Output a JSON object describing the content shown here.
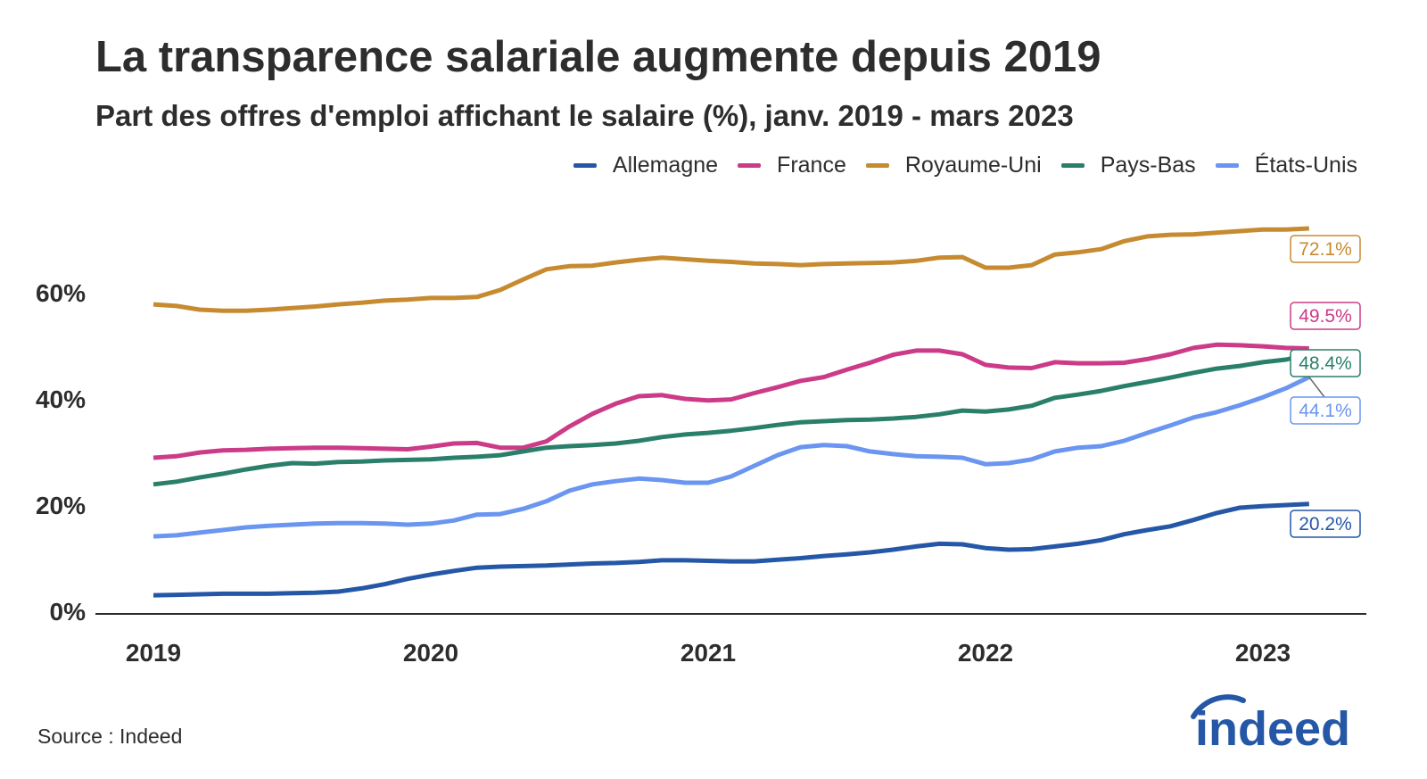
{
  "chart_data": {
    "type": "line",
    "title": "La transparence salariale augmente depuis 2019",
    "subtitle": "Part des offres d'emploi affichant le salaire (%), janv. 2019 - mars 2023",
    "xlabel": "",
    "ylabel": "",
    "x_start": "2019-01",
    "x_end": "2023-03",
    "x_frequency": "monthly",
    "x_ticks": [
      "2019",
      "2020",
      "2021",
      "2022",
      "2023"
    ],
    "y_ticks": [
      "0%",
      "20%",
      "40%",
      "60%"
    ],
    "y_tick_values": [
      0,
      20,
      40,
      60
    ],
    "ylim": [
      0,
      75
    ],
    "grid": false,
    "legend_position": "top-right",
    "series": [
      {
        "name": "Allemagne",
        "color": "#2557a7",
        "end_label": "20.2%",
        "values": [
          3.0,
          3.1,
          3.2,
          3.3,
          3.3,
          3.3,
          3.4,
          3.5,
          3.7,
          4.3,
          5.1,
          6.1,
          6.9,
          7.6,
          8.2,
          8.4,
          8.5,
          8.6,
          8.8,
          9.0,
          9.1,
          9.3,
          9.6,
          9.6,
          9.5,
          9.4,
          9.4,
          9.7,
          10.0,
          10.4,
          10.7,
          11.1,
          11.6,
          12.2,
          12.7,
          12.6,
          11.9,
          11.6,
          11.7,
          12.2,
          12.7,
          13.4,
          14.5,
          15.3,
          16.0,
          17.2,
          18.5,
          19.5,
          19.8,
          20.0,
          20.2
        ]
      },
      {
        "name": "France",
        "color": "#cb3b87",
        "end_label": "49.5%",
        "values": [
          28.9,
          29.2,
          29.9,
          30.3,
          30.4,
          30.6,
          30.7,
          30.8,
          30.8,
          30.7,
          30.6,
          30.5,
          31.0,
          31.6,
          31.7,
          30.8,
          30.8,
          32.0,
          34.8,
          37.2,
          39.1,
          40.5,
          40.7,
          40.0,
          39.7,
          39.9,
          41.1,
          42.2,
          43.4,
          44.1,
          45.5,
          46.8,
          48.3,
          49.1,
          49.1,
          48.4,
          46.4,
          45.9,
          45.8,
          46.9,
          46.7,
          46.7,
          46.8,
          47.5,
          48.4,
          49.6,
          50.2,
          50.1,
          49.9,
          49.6,
          49.5
        ]
      },
      {
        "name": "Royaume-Uni",
        "color": "#c68b31",
        "end_label": "72.1%",
        "values": [
          57.8,
          57.5,
          56.8,
          56.6,
          56.6,
          56.8,
          57.1,
          57.4,
          57.8,
          58.1,
          58.5,
          58.7,
          59.0,
          59.0,
          59.2,
          60.5,
          62.5,
          64.4,
          65.0,
          65.1,
          65.7,
          66.2,
          66.6,
          66.3,
          66.0,
          65.8,
          65.5,
          65.4,
          65.2,
          65.4,
          65.5,
          65.6,
          65.7,
          66.0,
          66.6,
          66.7,
          64.7,
          64.7,
          65.2,
          67.2,
          67.6,
          68.2,
          69.7,
          70.6,
          70.9,
          71.0,
          71.3,
          71.6,
          71.9,
          71.9,
          72.1
        ]
      },
      {
        "name": "Pays-Bas",
        "color": "#2a7f6a",
        "end_label": "48.4%",
        "values": [
          23.9,
          24.4,
          25.2,
          25.9,
          26.7,
          27.4,
          27.9,
          27.8,
          28.1,
          28.2,
          28.4,
          28.5,
          28.6,
          28.9,
          29.1,
          29.4,
          30.1,
          30.8,
          31.1,
          31.3,
          31.6,
          32.1,
          32.8,
          33.3,
          33.6,
          34.0,
          34.5,
          35.1,
          35.6,
          35.8,
          36.0,
          36.1,
          36.3,
          36.6,
          37.1,
          37.8,
          37.6,
          38.0,
          38.7,
          40.2,
          40.8,
          41.5,
          42.4,
          43.2,
          44.0,
          44.9,
          45.7,
          46.2,
          46.9,
          47.4,
          48.4
        ]
      },
      {
        "name": "États-Unis",
        "color": "#6a95f0",
        "end_label": "44.1%",
        "values": [
          14.1,
          14.3,
          14.8,
          15.3,
          15.8,
          16.1,
          16.3,
          16.5,
          16.6,
          16.6,
          16.5,
          16.3,
          16.5,
          17.1,
          18.2,
          18.3,
          19.3,
          20.7,
          22.7,
          23.9,
          24.5,
          25.0,
          24.7,
          24.2,
          24.2,
          25.4,
          27.4,
          29.4,
          30.9,
          31.3,
          31.1,
          30.1,
          29.6,
          29.2,
          29.1,
          28.9,
          27.7,
          27.9,
          28.6,
          30.1,
          30.8,
          31.1,
          32.1,
          33.6,
          35.0,
          36.5,
          37.5,
          38.8,
          40.3,
          42.0,
          44.1
        ]
      }
    ],
    "source": "Source : Indeed"
  },
  "logo": {
    "text": "indeed",
    "color": "#2557a7"
  }
}
